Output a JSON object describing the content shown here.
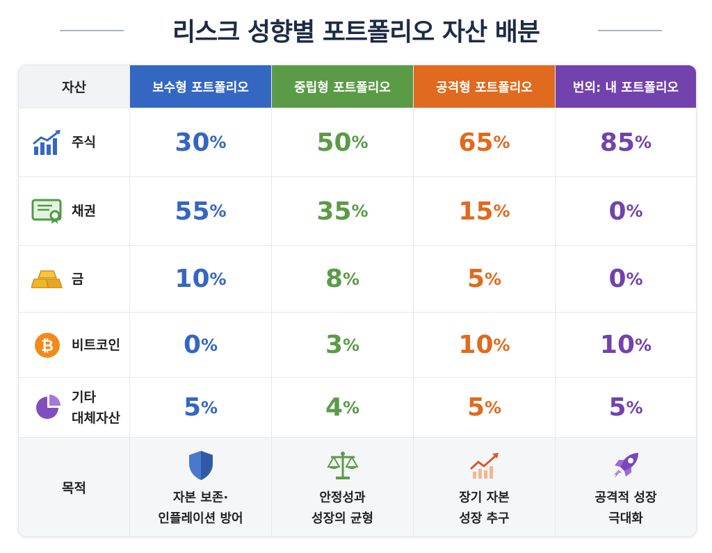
{
  "title": "리스크 성향별 포트폴리오 자산 배분",
  "header": {
    "asset": "자산",
    "columns": [
      "보수형 포트폴리오",
      "중립형 포트폴리오",
      "공격형 포트폴리오",
      "번외: 내 포트폴리오"
    ]
  },
  "colors": {
    "blue": "#3467c2",
    "green": "#5b9b48",
    "orange": "#e06a1e",
    "purple": "#7242ad"
  },
  "rows": [
    {
      "icon": "stock-chart-icon",
      "label": "주식",
      "values": [
        "30",
        "50",
        "65",
        "85"
      ]
    },
    {
      "icon": "bond-certificate-icon",
      "label": "채권",
      "values": [
        "55",
        "35",
        "15",
        "0"
      ]
    },
    {
      "icon": "gold-bars-icon",
      "label": "금",
      "values": [
        "10",
        "8",
        "5",
        "0"
      ]
    },
    {
      "icon": "bitcoin-icon",
      "label": "비트코인",
      "values": [
        "0",
        "3",
        "10",
        "10"
      ]
    },
    {
      "icon": "pie-chart-icon",
      "label_line1": "기타",
      "label_line2": "대체자산",
      "values": [
        "5",
        "4",
        "5",
        "5"
      ]
    }
  ],
  "percent_sign": "%",
  "purpose": {
    "label": "목적",
    "items": [
      {
        "icon": "shield-icon",
        "line1": "자본 보존·",
        "line2": "인플레이션 방어"
      },
      {
        "icon": "balance-scale-icon",
        "line1": "안정성과",
        "line2": "성장의 균형"
      },
      {
        "icon": "growth-chart-icon",
        "line1": "장기 자본",
        "line2": "성장 추구"
      },
      {
        "icon": "rocket-icon",
        "line1": "공격적 성장",
        "line2": "극대화"
      }
    ]
  }
}
